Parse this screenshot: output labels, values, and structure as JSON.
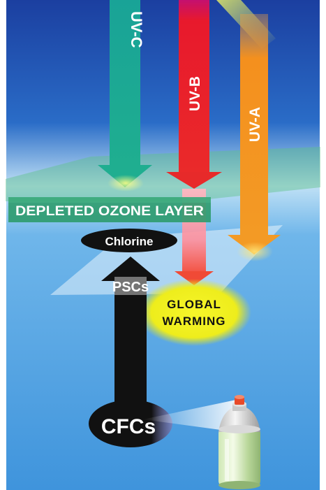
{
  "labels": {
    "uv_c": "UV-C",
    "uv_b": "UV-B",
    "uv_a": "UV-A",
    "ozone_layer": "DEPLETED OZONE LAYER",
    "chlorine": "Chlorine",
    "pscs": "PSCs",
    "global_warming_line1": "GLOBAL",
    "global_warming_line2": "WARMING",
    "cfcs": "CFCs"
  },
  "colors": {
    "sky_top": "#1d4fb0",
    "sky_bottom": "#5aa8e6",
    "uv_c": "#1aa59a",
    "uv_b": "#e8192c",
    "uv_a": "#f4901e",
    "ozone_layer": "#2c9d6b",
    "global_warming_glow": "#f2ef20",
    "chlorine_oval": "#111111",
    "cfcs_oval": "#111111"
  }
}
